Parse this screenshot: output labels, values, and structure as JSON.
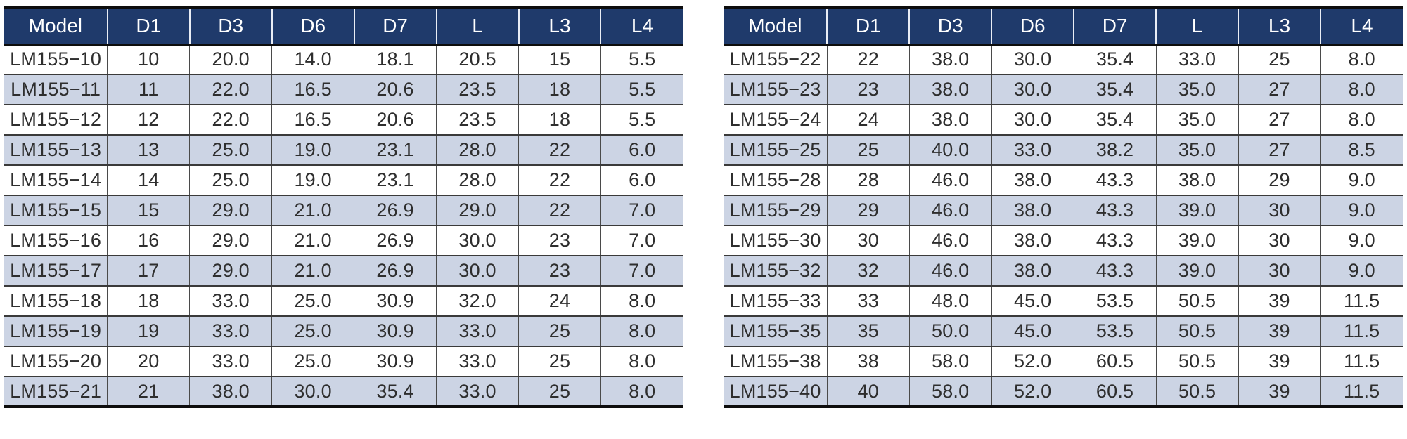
{
  "columns": [
    "Model",
    "D1",
    "D3",
    "D6",
    "D7",
    "L",
    "L3",
    "L4"
  ],
  "tables": [
    {
      "rows": [
        [
          "LM155−10",
          "10",
          "20.0",
          "14.0",
          "18.1",
          "20.5",
          "15",
          "5.5"
        ],
        [
          "LM155−11",
          "11",
          "22.0",
          "16.5",
          "20.6",
          "23.5",
          "18",
          "5.5"
        ],
        [
          "LM155−12",
          "12",
          "22.0",
          "16.5",
          "20.6",
          "23.5",
          "18",
          "5.5"
        ],
        [
          "LM155−13",
          "13",
          "25.0",
          "19.0",
          "23.1",
          "28.0",
          "22",
          "6.0"
        ],
        [
          "LM155−14",
          "14",
          "25.0",
          "19.0",
          "23.1",
          "28.0",
          "22",
          "6.0"
        ],
        [
          "LM155−15",
          "15",
          "29.0",
          "21.0",
          "26.9",
          "29.0",
          "22",
          "7.0"
        ],
        [
          "LM155−16",
          "16",
          "29.0",
          "21.0",
          "26.9",
          "30.0",
          "23",
          "7.0"
        ],
        [
          "LM155−17",
          "17",
          "29.0",
          "21.0",
          "26.9",
          "30.0",
          "23",
          "7.0"
        ],
        [
          "LM155−18",
          "18",
          "33.0",
          "25.0",
          "30.9",
          "32.0",
          "24",
          "8.0"
        ],
        [
          "LM155−19",
          "19",
          "33.0",
          "25.0",
          "30.9",
          "33.0",
          "25",
          "8.0"
        ],
        [
          "LM155−20",
          "20",
          "33.0",
          "25.0",
          "30.9",
          "33.0",
          "25",
          "8.0"
        ],
        [
          "LM155−21",
          "21",
          "38.0",
          "30.0",
          "35.4",
          "33.0",
          "25",
          "8.0"
        ]
      ]
    },
    {
      "rows": [
        [
          "LM155−22",
          "22",
          "38.0",
          "30.0",
          "35.4",
          "33.0",
          "25",
          "8.0"
        ],
        [
          "LM155−23",
          "23",
          "38.0",
          "30.0",
          "35.4",
          "35.0",
          "27",
          "8.0"
        ],
        [
          "LM155−24",
          "24",
          "38.0",
          "30.0",
          "35.4",
          "35.0",
          "27",
          "8.0"
        ],
        [
          "LM155−25",
          "25",
          "40.0",
          "33.0",
          "38.2",
          "35.0",
          "27",
          "8.5"
        ],
        [
          "LM155−28",
          "28",
          "46.0",
          "38.0",
          "43.3",
          "38.0",
          "29",
          "9.0"
        ],
        [
          "LM155−29",
          "29",
          "46.0",
          "38.0",
          "43.3",
          "39.0",
          "30",
          "9.0"
        ],
        [
          "LM155−30",
          "30",
          "46.0",
          "38.0",
          "43.3",
          "39.0",
          "30",
          "9.0"
        ],
        [
          "LM155−32",
          "32",
          "46.0",
          "38.0",
          "43.3",
          "39.0",
          "30",
          "9.0"
        ],
        [
          "LM155−33",
          "33",
          "48.0",
          "45.0",
          "53.5",
          "50.5",
          "39",
          "11.5"
        ],
        [
          "LM155−35",
          "35",
          "50.0",
          "45.0",
          "53.5",
          "50.5",
          "39",
          "11.5"
        ],
        [
          "LM155−38",
          "38",
          "58.0",
          "52.0",
          "60.5",
          "50.5",
          "39",
          "11.5"
        ],
        [
          "LM155−40",
          "40",
          "58.0",
          "52.0",
          "60.5",
          "50.5",
          "39",
          "11.5"
        ]
      ]
    }
  ],
  "colors": {
    "header_bg": "#1f3a6b",
    "header_text": "#ffffff",
    "stripe": "#ccd4e4",
    "outer_border": "#0d0d0d",
    "cell_text": "#2e2e2e"
  }
}
